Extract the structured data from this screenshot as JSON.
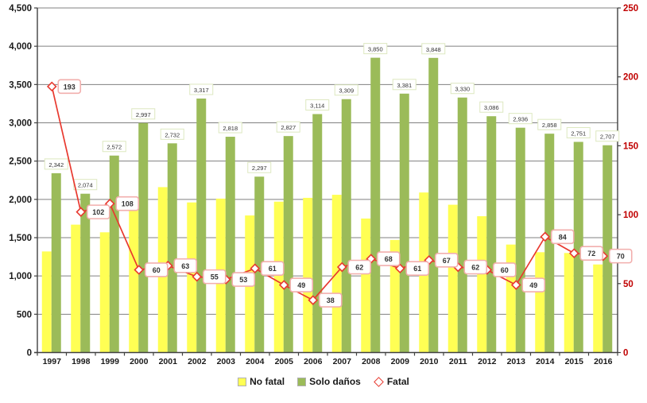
{
  "chart_data": {
    "type": "bar",
    "subtype": "combo-bar-line",
    "categories": [
      "1997",
      "1998",
      "1999",
      "2000",
      "2001",
      "2002",
      "2003",
      "2004",
      "2005",
      "2006",
      "2007",
      "2008",
      "2009",
      "2010",
      "2011",
      "2012",
      "2013",
      "2014",
      "2015",
      "2016"
    ],
    "series": [
      {
        "name": "No fatal",
        "type": "bar",
        "axis": "left",
        "color": "#ffff54",
        "data_labels": false,
        "values": [
          1320,
          1670,
          1570,
          1880,
          2160,
          1960,
          2010,
          1790,
          1970,
          2020,
          2060,
          1750,
          1470,
          2090,
          1930,
          1780,
          1410,
          1310,
          1300,
          1150
        ]
      },
      {
        "name": "Solo daños",
        "type": "bar",
        "axis": "left",
        "color": "#9bbb59",
        "data_labels": true,
        "values": [
          2342,
          2074,
          2572,
          2997,
          2732,
          3317,
          2818,
          2297,
          2827,
          3114,
          3309,
          3850,
          3381,
          3848,
          3330,
          3086,
          2936,
          2858,
          2751,
          2707
        ]
      },
      {
        "name": "Fatal",
        "type": "line",
        "axis": "right",
        "color": "#e8392f",
        "marker": "diamond",
        "data_labels": true,
        "values": [
          193,
          102,
          108,
          60,
          63,
          55,
          53,
          61,
          49,
          38,
          62,
          68,
          61,
          67,
          62,
          60,
          49,
          84,
          72,
          70
        ]
      }
    ],
    "left_axis": {
      "min": 0,
      "max": 4500,
      "step": 500,
      "label_color": "#1a1a1a"
    },
    "right_axis": {
      "min": 0,
      "max": 250,
      "step": 50,
      "label_color": "#c00000"
    },
    "grid": true,
    "gridline_color": "#808080",
    "axis_line_color": "#404040",
    "legend_position": "bottom",
    "label_box": {
      "bar_border": "#dde8c0",
      "line_border": "#f2afad",
      "background": "#ffffff",
      "text_color": "#333333"
    }
  }
}
